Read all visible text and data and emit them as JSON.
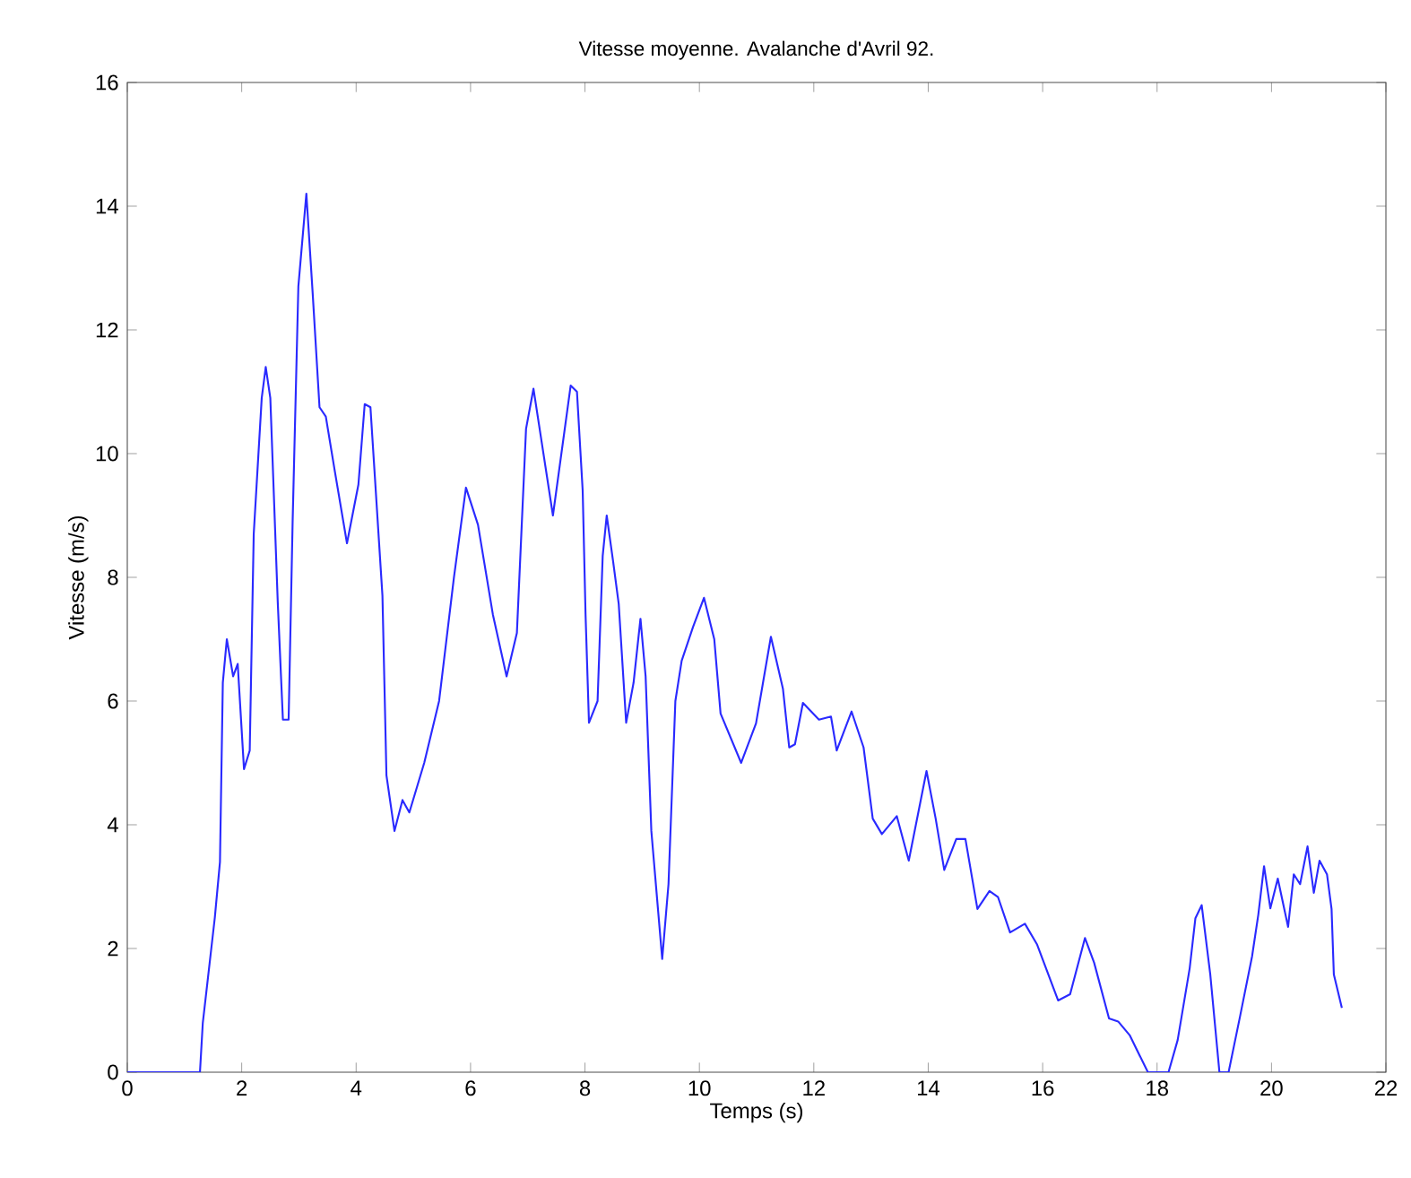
{
  "chart_data": {
    "type": "line",
    "title": "Vitesse moyenne. Avalanche d'Avril 92.",
    "xlabel": "Temps (s)",
    "ylabel": "Vitesse (m/s)",
    "xlim": [
      0,
      22
    ],
    "ylim": [
      0,
      16
    ],
    "xticks": [
      0,
      2,
      4,
      6,
      8,
      10,
      12,
      14,
      16,
      18,
      20,
      22
    ],
    "yticks": [
      0,
      2,
      4,
      6,
      8,
      10,
      12,
      14,
      16
    ],
    "grid": false,
    "line_style": "solid",
    "marker": "none",
    "series": [
      {
        "color": "#2a2aff",
        "x": [
          0,
          1.27,
          1.32,
          1.53,
          1.62,
          1.67,
          1.74,
          1.85,
          1.93,
          2.04,
          2.14,
          2.21,
          2.35,
          2.42,
          2.5,
          2.63,
          2.72,
          2.82,
          2.89,
          2.99,
          3.13,
          3.24,
          3.36,
          3.47,
          3.63,
          3.84,
          4.04,
          4.15,
          4.25,
          4.46,
          4.53,
          4.67,
          4.81,
          4.93,
          5.19,
          5.45,
          5.71,
          5.92,
          6.13,
          6.39,
          6.63,
          6.81,
          6.97,
          7.1,
          7.44,
          7.75,
          7.86,
          7.96,
          8.01,
          8.07,
          8.22,
          8.31,
          8.38,
          8.49,
          8.59,
          8.72,
          8.85,
          8.97,
          9.06,
          9.16,
          9.35,
          9.46,
          9.58,
          9.69,
          9.89,
          10.08,
          10.26,
          10.37,
          10.73,
          10.99,
          11.25,
          11.46,
          11.57,
          11.67,
          11.81,
          12.09,
          12.3,
          12.4,
          12.66,
          12.87,
          13.03,
          13.19,
          13.45,
          13.66,
          13.97,
          14.13,
          14.28,
          14.49,
          14.65,
          14.86,
          15.07,
          15.22,
          15.43,
          15.69,
          15.9,
          16.27,
          16.48,
          16.74,
          16.9,
          17.16,
          17.32,
          17.52,
          17.84,
          18.2,
          18.36,
          18.57,
          18.67,
          18.78,
          18.93,
          19.09,
          19.25,
          19.45,
          19.66,
          19.77,
          19.87,
          19.98,
          20.11,
          20.29,
          20.39,
          20.5,
          20.63,
          20.74,
          20.84,
          20.97,
          21.05,
          21.09,
          21.23
        ],
        "values": [
          0,
          0,
          0.8,
          2.5,
          3.4,
          6.3,
          7.0,
          6.4,
          6.6,
          4.9,
          5.2,
          8.7,
          10.9,
          11.4,
          10.9,
          7.6,
          5.7,
          5.7,
          8.9,
          12.7,
          14.2,
          12.6,
          10.75,
          10.6,
          9.7,
          8.55,
          9.5,
          10.8,
          10.75,
          7.7,
          4.8,
          3.9,
          4.4,
          4.2,
          5.0,
          6.0,
          8.0,
          9.45,
          8.85,
          7.4,
          6.4,
          7.1,
          10.4,
          11.05,
          9.0,
          11.1,
          11.0,
          9.4,
          7.4,
          5.65,
          6.0,
          8.35,
          9.0,
          8.27,
          7.57,
          5.65,
          6.3,
          7.33,
          6.4,
          3.9,
          1.83,
          3.04,
          6.0,
          6.65,
          7.2,
          7.67,
          7.0,
          5.8,
          5.0,
          5.64,
          7.04,
          6.2,
          5.25,
          5.3,
          5.97,
          5.7,
          5.75,
          5.2,
          5.83,
          5.25,
          4.1,
          3.85,
          4.14,
          3.42,
          4.87,
          4.1,
          3.27,
          3.77,
          3.77,
          2.64,
          2.93,
          2.83,
          2.26,
          2.4,
          2.07,
          1.16,
          1.26,
          2.17,
          1.77,
          0.87,
          0.82,
          0.6,
          0,
          0,
          0.52,
          1.68,
          2.49,
          2.7,
          1.58,
          0,
          0,
          0.9,
          1.87,
          2.55,
          3.33,
          2.65,
          3.13,
          2.35,
          3.2,
          3.04,
          3.65,
          2.9,
          3.42,
          3.2,
          2.64,
          1.58,
          1.04
        ]
      }
    ]
  }
}
